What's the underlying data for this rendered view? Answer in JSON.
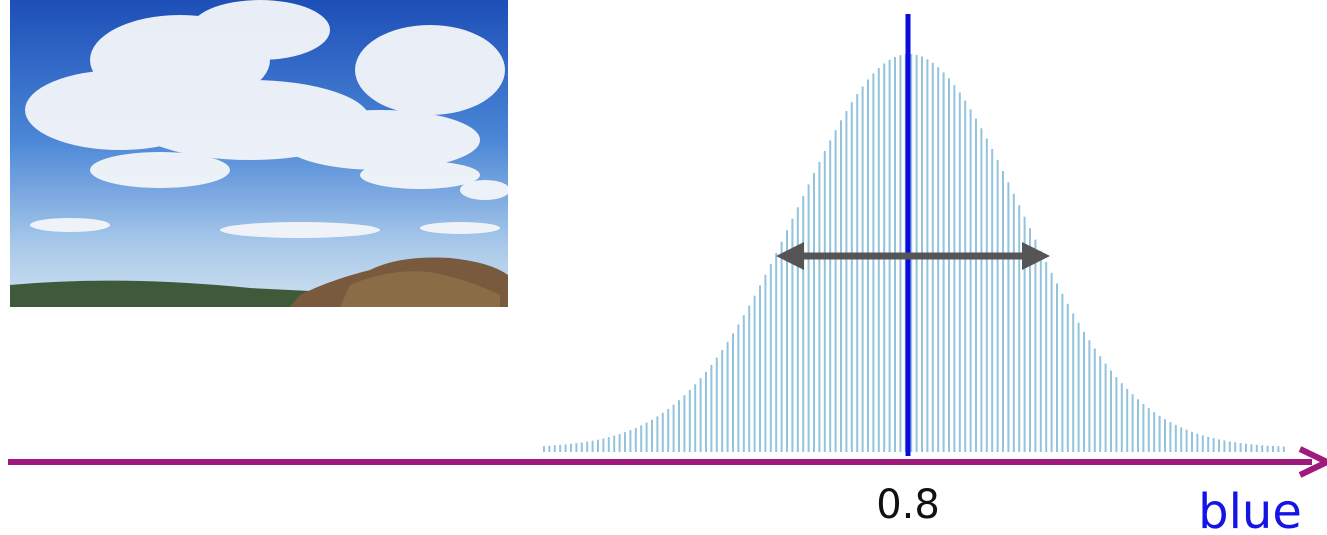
{
  "labels": {
    "mean": "0.8",
    "axis": "blue"
  }
}
